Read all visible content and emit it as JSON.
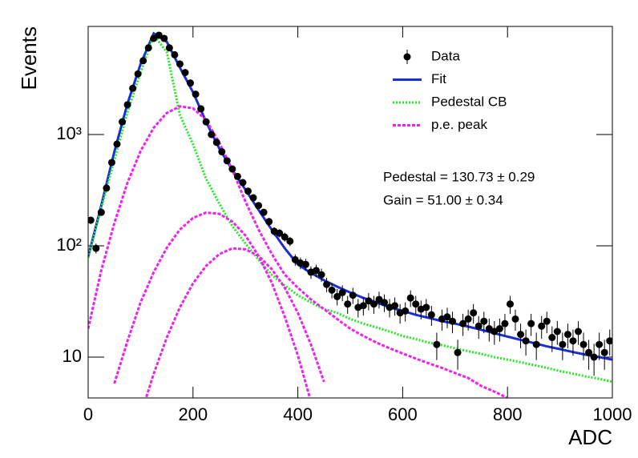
{
  "chart_data": {
    "type": "scatter",
    "xlabel": "ADC",
    "ylabel": "Events",
    "xlim": [
      0,
      1000
    ],
    "ylim": [
      4.3,
      9350
    ],
    "log_y": true,
    "xticks": [
      0,
      200,
      400,
      600,
      800,
      1000
    ],
    "yticks": [
      10,
      {
        "value": 100,
        "label": "10²"
      },
      {
        "value": 1000,
        "label": "10³"
      }
    ],
    "legend": "top-right",
    "annotations": [
      "Pedestal = 130.73 ± 0.29",
      "Gain = 51.00 ± 0.34"
    ],
    "series": [
      {
        "name": "Data",
        "type": "scatter",
        "color": "#000000",
        "x": [
          5,
          15,
          25,
          35,
          45,
          55,
          65,
          75,
          85,
          95,
          105,
          115,
          125,
          135,
          145,
          155,
          165,
          175,
          185,
          195,
          205,
          215,
          225,
          235,
          245,
          255,
          265,
          275,
          285,
          295,
          305,
          315,
          325,
          335,
          345,
          355,
          365,
          375,
          385,
          395,
          405,
          415,
          425,
          435,
          445,
          455,
          465,
          475,
          485,
          495,
          505,
          515,
          525,
          535,
          545,
          555,
          565,
          575,
          585,
          595,
          605,
          615,
          625,
          635,
          645,
          655,
          665,
          675,
          685,
          695,
          705,
          715,
          725,
          735,
          745,
          755,
          765,
          775,
          785,
          795,
          805,
          815,
          825,
          835,
          845,
          855,
          865,
          875,
          885,
          895,
          905,
          915,
          925,
          935,
          945,
          955,
          965,
          975,
          985,
          995
        ],
        "values": [
          170,
          95,
          200,
          330,
          560,
          820,
          1300,
          1850,
          2600,
          3500,
          4600,
          6000,
          7300,
          7800,
          7300,
          6000,
          5200,
          4300,
          3600,
          2900,
          2300,
          1700,
          1300,
          1000,
          850,
          700,
          580,
          490,
          420,
          370,
          310,
          270,
          230,
          200,
          165,
          135,
          130,
          120,
          110,
          75,
          70,
          68,
          58,
          60,
          55,
          45,
          40,
          35,
          38,
          30,
          36,
          28,
          29,
          32,
          30,
          33,
          31,
          28,
          29,
          25,
          26,
          34,
          30,
          27,
          28,
          24,
          13,
          22,
          23,
          21,
          11,
          20,
          22,
          25,
          19,
          21,
          18,
          17,
          18,
          20,
          30,
          22,
          16,
          14,
          20,
          13,
          19,
          21,
          15,
          17,
          13,
          16,
          14,
          17,
          13,
          11,
          10,
          13,
          11,
          14
        ],
        "errors": [
          13,
          9.7,
          14,
          18,
          24,
          29,
          36,
          43,
          51,
          59,
          68,
          77,
          85,
          88,
          85,
          77,
          72,
          66,
          60,
          54,
          48,
          41,
          36,
          32,
          29,
          26,
          24,
          22,
          20,
          19,
          18,
          16,
          15,
          14,
          13,
          12,
          11,
          11,
          10.5,
          8.7,
          8.4,
          8.2,
          7.6,
          7.7,
          7.4,
          6.7,
          6.3,
          5.9,
          6.2,
          5.5,
          6,
          5.3,
          5.4,
          5.7,
          5.5,
          5.7,
          5.6,
          5.3,
          5.4,
          5,
          5.1,
          5.8,
          5.5,
          5.2,
          5.3,
          4.9,
          3.6,
          4.7,
          4.8,
          4.6,
          3.3,
          4.5,
          4.7,
          5,
          4.4,
          4.6,
          4.2,
          4.1,
          4.2,
          4.5,
          5.5,
          4.7,
          4,
          3.7,
          4.5,
          3.6,
          4.4,
          4.6,
          3.9,
          4.1,
          3.6,
          4,
          3.7,
          4.1,
          3.6,
          3.3,
          3.2,
          3.6,
          3.3,
          3.7
        ]
      },
      {
        "name": "Fit",
        "type": "line",
        "color": "#1a2ed6",
        "style": "solid",
        "x": [
          0,
          25,
          50,
          75,
          100,
          125,
          150,
          175,
          200,
          225,
          250,
          275,
          300,
          325,
          350,
          375,
          400,
          425,
          450,
          475,
          500,
          525,
          550,
          575,
          600,
          625,
          650,
          675,
          700,
          725,
          750,
          775,
          800,
          825,
          850,
          875,
          900,
          925,
          950,
          975,
          1000
        ],
        "values": [
          80,
          230,
          700,
          1900,
          4300,
          8100,
          6800,
          4000,
          2400,
          1300,
          750,
          480,
          320,
          210,
          140,
          95,
          68,
          57,
          49,
          43,
          38,
          34,
          31,
          28,
          26,
          24,
          22.5,
          21,
          20,
          18.8,
          17.6,
          16.4,
          15.3,
          14.3,
          13.4,
          12.5,
          11.8,
          11.1,
          10.5,
          10,
          9.5
        ]
      },
      {
        "name": "Pedestal CB",
        "type": "line",
        "color": "#22e822",
        "style": "dotted",
        "x": [
          0,
          25,
          50,
          75,
          100,
          125,
          150,
          175,
          200,
          225,
          250,
          275,
          300,
          325,
          350,
          375,
          400,
          425,
          450,
          475,
          500,
          525,
          550,
          575,
          600,
          625,
          650,
          675,
          700,
          725,
          750,
          775,
          800,
          825,
          850,
          875,
          900,
          925,
          950,
          975,
          1000
        ],
        "values": [
          78,
          220,
          590,
          1590,
          3600,
          7800,
          5500,
          1500,
          820,
          400,
          240,
          150,
          105,
          75,
          55,
          44,
          36,
          31,
          27,
          25,
          22,
          20,
          18.5,
          17,
          15.5,
          14.5,
          13.5,
          12.8,
          12,
          11.3,
          10.7,
          10,
          9.5,
          9,
          8.5,
          8,
          7.5,
          7.1,
          6.7,
          6.4,
          6
        ]
      },
      {
        "name": "p.e. peak",
        "type": "line",
        "color": "#ee22ee",
        "style": "dashed",
        "x": [
          0,
          25,
          50,
          75,
          100,
          125,
          150,
          175,
          200,
          225,
          250,
          275,
          300,
          325,
          350,
          375,
          400,
          425,
          450,
          475,
          500,
          525,
          550,
          575,
          600,
          625,
          650,
          675,
          700,
          725,
          750,
          775,
          800
        ],
        "values": [
          18,
          60,
          160,
          370,
          710,
          1150,
          1560,
          1790,
          1720,
          1350,
          850,
          480,
          250,
          140,
          85,
          55,
          42,
          33,
          27,
          22,
          18,
          15.5,
          13.5,
          12,
          10.8,
          9.7,
          8.8,
          8,
          7.2,
          6.5,
          5.5,
          4.9,
          4.3
        ]
      },
      {
        "type": "line",
        "color": "#ee22ee",
        "style": "dashed",
        "x": [
          50,
          75,
          100,
          125,
          150,
          175,
          200,
          225,
          250,
          275,
          300,
          325,
          350,
          375,
          400,
          425
        ],
        "values": [
          5.8,
          14,
          31,
          58,
          96,
          140,
          178,
          199,
          194,
          165,
          124,
          81,
          47,
          23,
          10.4,
          4.0
        ]
      },
      {
        "type": "line",
        "color": "#ee22ee",
        "style": "dashed",
        "x": [
          100,
          125,
          150,
          175,
          200,
          225,
          250,
          275,
          300,
          325,
          350,
          375,
          400,
          425,
          450
        ],
        "values": [
          3.0,
          7.1,
          15,
          28,
          46,
          66,
          84,
          95,
          93,
          81,
          62,
          42,
          25,
          13,
          6.0
        ]
      }
    ]
  }
}
